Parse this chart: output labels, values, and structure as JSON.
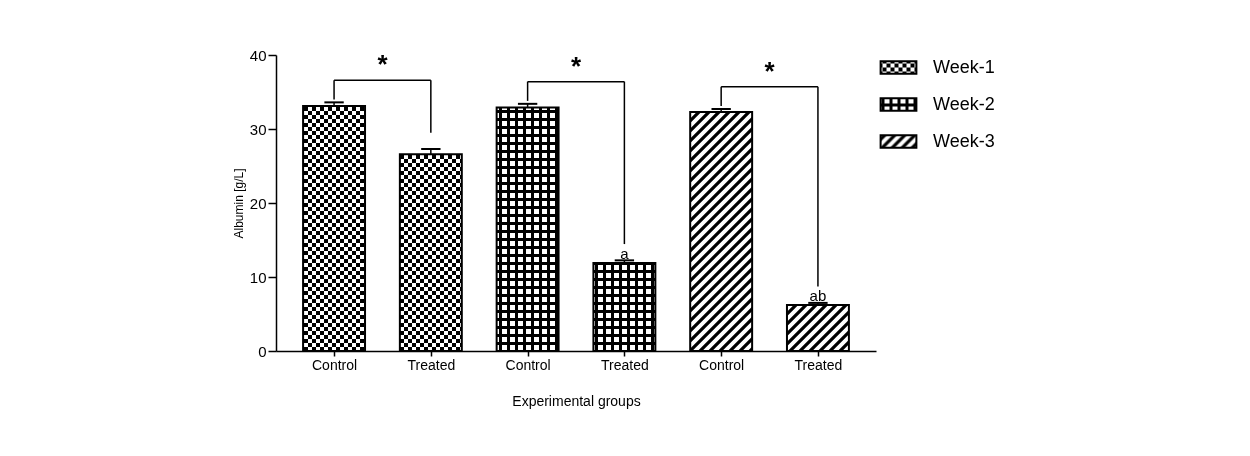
{
  "chart_data": {
    "type": "bar",
    "xlabel": "Experimental groups",
    "ylabel": "Albumin [g/L]",
    "categories": [
      "Control",
      "Treated",
      "Control",
      "Treated",
      "Control",
      "Treated"
    ],
    "series": [
      {
        "name": "Week-1",
        "color": "#000000",
        "values": [
          33.1,
          26.6,
          null,
          null,
          null,
          null
        ],
        "errors": [
          0.5,
          0.7,
          null,
          null,
          null,
          null
        ]
      },
      {
        "name": "Week-2",
        "color": "#000000",
        "values": [
          null,
          null,
          32.9,
          11.9,
          null,
          null
        ],
        "errors": [
          null,
          null,
          0.5,
          0.35,
          null,
          null
        ]
      },
      {
        "name": "Week-3",
        "color": "#000000",
        "values": [
          null,
          null,
          null,
          null,
          32.3,
          6.2
        ],
        "errors": [
          null,
          null,
          null,
          null,
          0.4,
          0.3
        ]
      }
    ],
    "ylim": [
      0,
      40
    ],
    "yticks": [
      0,
      10,
      20,
      30,
      40
    ],
    "grid": false,
    "legend": "top right",
    "annotations": [
      "*",
      "*",
      "*",
      {
        "text": "a",
        "y": 12.2
      },
      {
        "text": "ab",
        "y": 6.5
      }
    ]
  }
}
